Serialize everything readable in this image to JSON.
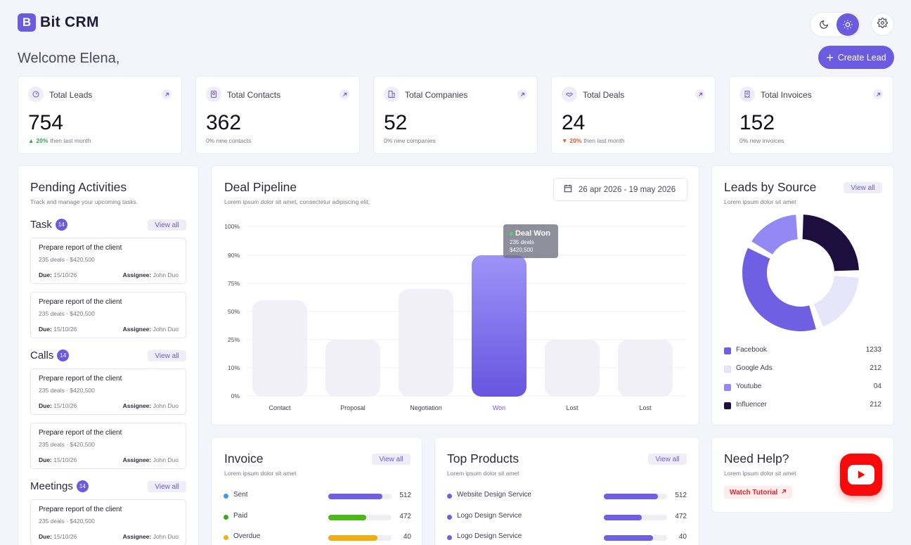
{
  "app": {
    "logo_letter": "B",
    "name": "Bit CRM"
  },
  "header": {
    "welcome": "Welcome Elena,",
    "create_lead": "Create Lead"
  },
  "stats": [
    {
      "label": "Total Leads",
      "value": "754",
      "change": "20%",
      "direction": "up",
      "suffix": "then last month",
      "icon": "leads-icon"
    },
    {
      "label": "Total Contacts",
      "value": "362",
      "change": "",
      "direction": "none",
      "suffix": "0% new contacts",
      "icon": "contacts-icon"
    },
    {
      "label": "Total Companies",
      "value": "52",
      "change": "",
      "direction": "none",
      "suffix": "0% new companies",
      "icon": "companies-icon"
    },
    {
      "label": "Total Deals",
      "value": "24",
      "change": "20%",
      "direction": "down",
      "suffix": "then last month",
      "icon": "deals-icon"
    },
    {
      "label": "Total Invoices",
      "value": "152",
      "change": "",
      "direction": "none",
      "suffix": "0% new invoices",
      "icon": "invoices-icon"
    }
  ],
  "pending": {
    "title": "Pending Activities",
    "subtitle": "Track and manage your upcoming tasks.",
    "view_all": "View all",
    "sections": [
      {
        "name": "Task",
        "count": "14",
        "items": [
          {
            "title": "Prepare report of the client",
            "meta": "235 deals · $420,500",
            "due_label": "Due:",
            "due": "15/10/26",
            "assignee_label": "Assignee:",
            "assignee": "John Duo"
          },
          {
            "title": "Prepare report of the client",
            "meta": "235 deals · $420,500",
            "due_label": "Due:",
            "due": "15/10/26",
            "assignee_label": "Assignee:",
            "assignee": "John Duo"
          }
        ]
      },
      {
        "name": "Calls",
        "count": "14",
        "items": [
          {
            "title": "Prepare report of the client",
            "meta": "235 deals · $420,500",
            "due_label": "Due:",
            "due": "15/10/26",
            "assignee_label": "Assignee:",
            "assignee": "John Duo"
          },
          {
            "title": "Prepare report of the client",
            "meta": "235 deals · $420,500",
            "due_label": "Due:",
            "due": "15/10/26",
            "assignee_label": "Assignee:",
            "assignee": "John Duo"
          }
        ]
      },
      {
        "name": "Meetings",
        "count": "14",
        "items": [
          {
            "title": "Prepare report of the client",
            "meta": "235 deals · $420,500",
            "due_label": "Due:",
            "due": "15/10/26",
            "assignee_label": "Assignee:",
            "assignee": "John Duo"
          }
        ]
      }
    ]
  },
  "pipeline": {
    "title": "Deal Pipeline",
    "subtitle": "Lorem ipsum dolor sit amet, consectetur adipiscing elit,",
    "date_range": "26 apr 2026 - 19 may 2026",
    "tooltip": {
      "title": "Deal Won",
      "deals": "235 deals",
      "amount": "$420,500"
    }
  },
  "chart_data": {
    "type": "bar",
    "categories": [
      "Contact",
      "Proposal",
      "Negotiation",
      "Won",
      "Lost",
      "Lost"
    ],
    "values": [
      60,
      25,
      70,
      90,
      25,
      25
    ],
    "highlight_index": 3,
    "y_ticks": [
      "0%",
      "10%",
      "25%",
      "50%",
      "75%",
      "90%",
      "100%"
    ],
    "ylim": [
      0,
      100
    ],
    "grid": true,
    "colors": {
      "bar": "#F1F0F9",
      "highlight_top": "#9C93F7",
      "highlight_bottom": "#6755E0",
      "highlight_label": "#6B5BE0"
    }
  },
  "leads_source": {
    "title": "Leads by Source",
    "subtitle": "Lorem ipsum dolor sit amet",
    "view_all": "View all",
    "items": [
      {
        "name": "Facebook",
        "value": "1233",
        "color": "#6F60E3"
      },
      {
        "name": "Google Ads",
        "value": "212",
        "color": "#E7E5FA"
      },
      {
        "name": "Youtube",
        "value": "04",
        "color": "#9488F4"
      },
      {
        "name": "Influencer",
        "value": "212",
        "color": "#1E0E3D"
      }
    ]
  },
  "invoice": {
    "title": "Invoice",
    "subtitle": "Lorem ipsum dolor sit amet",
    "view_all": "View all",
    "items": [
      {
        "name": "Sent",
        "value": "512",
        "pct": 0.86,
        "color": "#6F60E3",
        "dot": "#3B9BE8"
      },
      {
        "name": "Paid",
        "value": "472",
        "pct": 0.6,
        "color": "#4CB81A",
        "dot": "#3EA51E"
      },
      {
        "name": "Overdue",
        "value": "40",
        "pct": 0.78,
        "color": "#F2AE11",
        "dot": "#F2AE11"
      }
    ]
  },
  "products": {
    "title": "Top Products",
    "subtitle": "Lorem ipsum dolor sit amet",
    "view_all": "View all",
    "items": [
      {
        "name": "Website Design Service",
        "value": "512",
        "pct": 0.86,
        "color": "#6F60E3"
      },
      {
        "name": "Logo Design Service",
        "value": "472",
        "pct": 0.6,
        "color": "#6F60E3"
      },
      {
        "name": "Logo Design Service",
        "value": "40",
        "pct": 0.78,
        "color": "#6F60E3"
      }
    ]
  },
  "help": {
    "title": "Need Help?",
    "subtitle": "Lorem ipsum dolor sit amet",
    "button": "Watch Tutorial"
  }
}
